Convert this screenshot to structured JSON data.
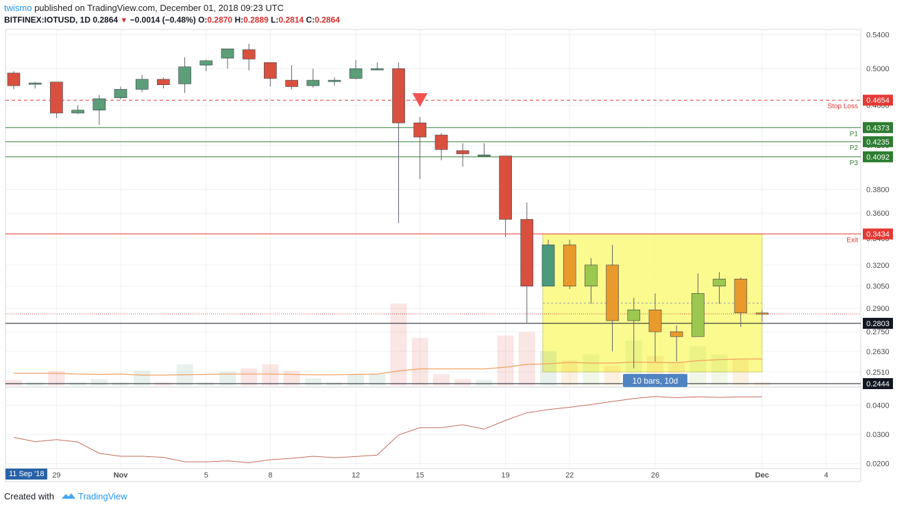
{
  "header": {
    "author": "twismo",
    "published_text": "published on TradingView.com, December 01, 2018 09:23 UTC",
    "symbol": "BITFINEX:IOTUSD, 1D",
    "last": "0.2864",
    "change": "−0.0014 (−0.48%)",
    "ohlc": {
      "o_label": "O:",
      "o": "0.2870",
      "h_label": "H:",
      "h": "0.2889",
      "l_label": "L:",
      "l": "0.2814",
      "c_label": "C:",
      "c": "0.2864"
    }
  },
  "footer": {
    "created_with": "Created with",
    "brand": "TradingView"
  },
  "date_badge": "11 Sep '18",
  "colors": {
    "up": "#5b9e78",
    "down": "#d9503f",
    "orange": "#e89a2c",
    "green_light": "#9bc850",
    "teal": "#4b9a7e",
    "zone": "#fafa7c",
    "stop": "#e53935",
    "pivot": "#2e7d32",
    "exit": "#e53935",
    "grid": "#eef0f3"
  },
  "chart_data": {
    "type": "candlestick",
    "price_axis": {
      "ticks": [
        0.54,
        0.5,
        0.46,
        0.42,
        0.38,
        0.36,
        0.34,
        0.32,
        0.305,
        0.29,
        0.275,
        0.263,
        0.251
      ],
      "tick_labels": [
        "0.5400",
        "0.5000",
        "0.4600",
        "0.4200",
        "0.3800",
        "0.3600",
        "0.3400",
        "0.3200",
        "0.3050",
        "0.2900",
        "0.2750",
        "0.2630",
        "0.2510"
      ],
      "range": [
        0.2444,
        0.544
      ],
      "scale": "log"
    },
    "x_ticks": [
      {
        "label": "29",
        "i": 2
      },
      {
        "label": "Nov",
        "i": 5,
        "bold": true
      },
      {
        "label": "5",
        "i": 9
      },
      {
        "label": "8",
        "i": 12
      },
      {
        "label": "12",
        "i": 16
      },
      {
        "label": "15",
        "i": 19
      },
      {
        "label": "19",
        "i": 23
      },
      {
        "label": "22",
        "i": 26
      },
      {
        "label": "26",
        "i": 30
      },
      {
        "label": "Dec",
        "i": 35,
        "bold": true
      },
      {
        "label": "4",
        "i": 38
      }
    ],
    "candles": [
      {
        "o": 0.495,
        "h": 0.497,
        "l": 0.477,
        "c": 0.481
      },
      {
        "o": 0.483,
        "h": 0.485,
        "l": 0.478,
        "c": 0.484
      },
      {
        "o": 0.485,
        "h": 0.485,
        "l": 0.447,
        "c": 0.452
      },
      {
        "o": 0.452,
        "h": 0.46,
        "l": 0.451,
        "c": 0.455
      },
      {
        "o": 0.455,
        "h": 0.471,
        "l": 0.44,
        "c": 0.467
      },
      {
        "o": 0.468,
        "h": 0.48,
        "l": 0.466,
        "c": 0.477
      },
      {
        "o": 0.477,
        "h": 0.493,
        "l": 0.474,
        "c": 0.488
      },
      {
        "o": 0.488,
        "h": 0.49,
        "l": 0.478,
        "c": 0.482
      },
      {
        "o": 0.483,
        "h": 0.513,
        "l": 0.473,
        "c": 0.502
      },
      {
        "o": 0.504,
        "h": 0.51,
        "l": 0.497,
        "c": 0.509
      },
      {
        "o": 0.512,
        "h": 0.522,
        "l": 0.5,
        "c": 0.523
      },
      {
        "o": 0.522,
        "h": 0.529,
        "l": 0.498,
        "c": 0.511
      },
      {
        "o": 0.507,
        "h": 0.507,
        "l": 0.48,
        "c": 0.489
      },
      {
        "o": 0.487,
        "h": 0.504,
        "l": 0.477,
        "c": 0.48
      },
      {
        "o": 0.481,
        "h": 0.5,
        "l": 0.479,
        "c": 0.487
      },
      {
        "o": 0.486,
        "h": 0.49,
        "l": 0.481,
        "c": 0.487
      },
      {
        "o": 0.489,
        "h": 0.51,
        "l": 0.488,
        "c": 0.5
      },
      {
        "o": 0.499,
        "h": 0.507,
        "l": 0.498,
        "c": 0.5
      },
      {
        "o": 0.5,
        "h": 0.507,
        "l": 0.352,
        "c": 0.442
      },
      {
        "o": 0.442,
        "h": 0.448,
        "l": 0.389,
        "c": 0.428
      },
      {
        "o": 0.43,
        "h": 0.432,
        "l": 0.406,
        "c": 0.416
      },
      {
        "o": 0.415,
        "h": 0.422,
        "l": 0.4,
        "c": 0.412
      },
      {
        "o": 0.411,
        "h": 0.422,
        "l": 0.41,
        "c": 0.411
      },
      {
        "o": 0.41,
        "h": 0.41,
        "l": 0.341,
        "c": 0.355
      },
      {
        "o": 0.355,
        "h": 0.369,
        "l": 0.28,
        "c": 0.305
      },
      {
        "o": 0.305,
        "h": 0.339,
        "l": 0.305,
        "c": 0.335,
        "color": "teal"
      },
      {
        "o": 0.335,
        "h": 0.339,
        "l": 0.303,
        "c": 0.305,
        "color": "orange"
      },
      {
        "o": 0.305,
        "h": 0.325,
        "l": 0.293,
        "c": 0.32,
        "color": "green_light"
      },
      {
        "o": 0.32,
        "h": 0.335,
        "l": 0.263,
        "c": 0.282,
        "color": "orange"
      },
      {
        "o": 0.282,
        "h": 0.297,
        "l": 0.253,
        "c": 0.289,
        "color": "green_light"
      },
      {
        "o": 0.289,
        "h": 0.3,
        "l": 0.257,
        "c": 0.275,
        "color": "orange"
      },
      {
        "o": 0.275,
        "h": 0.279,
        "l": 0.257,
        "c": 0.272,
        "color": "orange"
      },
      {
        "o": 0.272,
        "h": 0.314,
        "l": 0.272,
        "c": 0.3,
        "color": "green_light"
      },
      {
        "o": 0.305,
        "h": 0.315,
        "l": 0.293,
        "c": 0.31,
        "color": "green_light"
      },
      {
        "o": 0.31,
        "h": 0.311,
        "l": 0.278,
        "c": 0.287,
        "color": "orange"
      },
      {
        "o": 0.287,
        "h": 0.2889,
        "l": 0.2814,
        "c": 0.2864,
        "color": "orange"
      }
    ],
    "volume_relative": [
      0.07,
      0.04,
      0.18,
      0.04,
      0.08,
      0.04,
      0.18,
      0.04,
      0.26,
      0.04,
      0.17,
      0.21,
      0.26,
      0.18,
      0.09,
      0.04,
      0.14,
      0.14,
      1.0,
      0.58,
      0.14,
      0.08,
      0.07,
      0.61,
      0.65,
      0.42,
      0.31,
      0.38,
      0.24,
      0.55,
      0.36,
      0.28,
      0.48,
      0.38,
      0.32,
      0.04
    ],
    "volume_colors": [
      "down",
      "up",
      "down",
      "up",
      "up",
      "up",
      "up",
      "down",
      "up",
      "up",
      "up",
      "down",
      "down",
      "down",
      "up",
      "up",
      "up",
      "up",
      "down",
      "down",
      "down",
      "down",
      "up",
      "down",
      "down",
      "up",
      "orange",
      "green_light",
      "orange",
      "green_light",
      "orange",
      "orange",
      "green_light",
      "green_light",
      "orange",
      "orange"
    ],
    "volume_ma": [
      0.0,
      0.0,
      0.0,
      -0.02,
      -0.03,
      -0.02,
      -0.05,
      -0.05,
      -0.04,
      -0.03,
      -0.02,
      -0.02,
      -0.02,
      -0.03,
      -0.04,
      -0.04,
      -0.03,
      -0.02,
      0.07,
      0.13,
      0.13,
      0.13,
      0.13,
      0.18,
      0.26,
      0.28,
      0.32,
      0.3,
      0.3,
      0.33,
      0.32,
      0.31,
      0.37,
      0.4,
      0.42,
      0.42
    ],
    "levels": [
      {
        "name": "Stop Loss",
        "value": 0.4654,
        "label": "0.4654",
        "style": "dashed",
        "color": "stop"
      },
      {
        "name": "P1",
        "value": 0.4373,
        "label": "0.4373",
        "style": "solid",
        "color": "pivot"
      },
      {
        "name": "P2",
        "value": 0.4235,
        "label": "0.4235",
        "style": "solid",
        "color": "pivot"
      },
      {
        "name": "P3",
        "value": 0.4092,
        "label": "0.4092",
        "style": "solid",
        "color": "pivot"
      },
      {
        "name": "Exit",
        "value": 0.3434,
        "label": "0.3434",
        "style": "solid",
        "color": "exit"
      },
      {
        "name": "",
        "value": 0.2803,
        "label": "0.2803",
        "style": "solid",
        "color": "black"
      },
      {
        "name": "",
        "value": 0.2444,
        "label": "0.2444",
        "style": "solid",
        "color": "black"
      }
    ],
    "current_price_line": 0.2864,
    "sell_marker": {
      "i": 19,
      "value": 0.467
    },
    "range_box": {
      "start_i": 25,
      "end_i": 35,
      "top": 0.3434,
      "bottom": 0.251,
      "mid_line": 0.2935,
      "label": "10 bars, 10d"
    },
    "indicator": {
      "ticks": [
        0.04,
        0.03,
        0.02
      ],
      "tick_labels": [
        "0.0400",
        "0.0300",
        "0.0200"
      ],
      "range": [
        0.0185,
        0.046
      ],
      "values": [
        0.029,
        0.0275,
        0.0282,
        0.0274,
        0.0235,
        0.0225,
        0.0225,
        0.0221,
        0.0206,
        0.0206,
        0.0209,
        0.0203,
        0.0213,
        0.0218,
        0.0225,
        0.022,
        0.0224,
        0.0229,
        0.0298,
        0.0323,
        0.0323,
        0.0333,
        0.0318,
        0.0348,
        0.0374,
        0.0385,
        0.0393,
        0.0402,
        0.0413,
        0.0423,
        0.043,
        0.0426,
        0.0429,
        0.0427,
        0.0429,
        0.0429
      ]
    }
  }
}
